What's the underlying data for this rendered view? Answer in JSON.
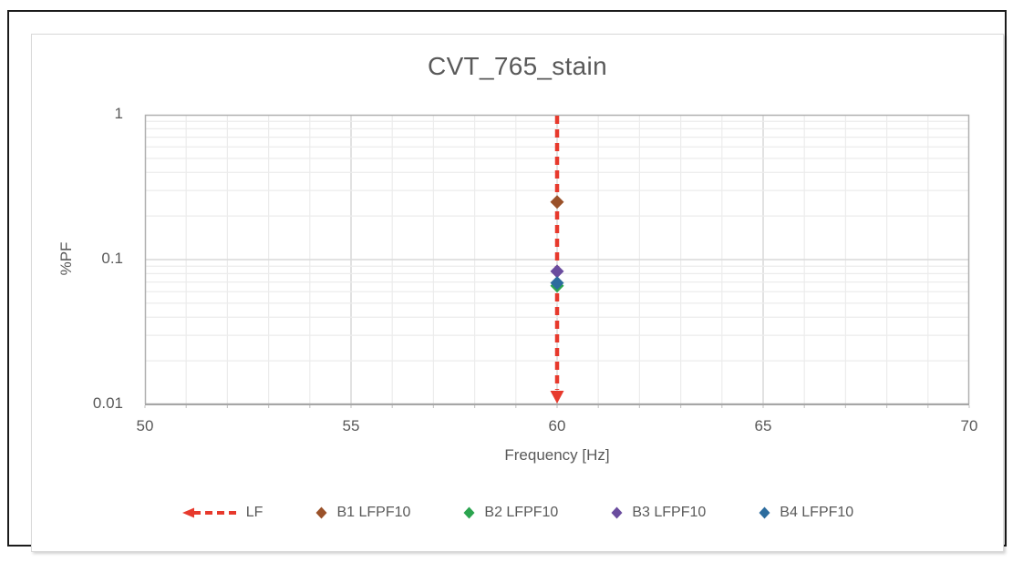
{
  "window": {
    "background_color": "#ffffff",
    "frame_border_color": "#1b1b1b",
    "chart_border_color": "#d9d9d9"
  },
  "chart_data": {
    "type": "scatter",
    "title": "CVT_765_stain",
    "xlabel": "Frequency [Hz]",
    "ylabel": "%PF",
    "xlim": [
      50,
      70
    ],
    "ylim": [
      0.01,
      1
    ],
    "y_scale": "log",
    "x_major_ticks": [
      50,
      55,
      60,
      65,
      70
    ],
    "x_tick_labels": [
      "50",
      "55",
      "60",
      "65",
      "70"
    ],
    "x_minor_step": 1,
    "y_major_ticks": [
      1,
      0.1,
      0.01
    ],
    "y_tick_labels": [
      "1",
      "0.1",
      "0.01"
    ],
    "grid": "major+minor",
    "legend_position": "bottom",
    "text_color": "#595959",
    "grid_minor_color": "#ececec",
    "grid_major_color": "#d9d9d9",
    "axis_line_color": "#b0b0b0",
    "reference_line": {
      "name": "LF",
      "x": 60,
      "color": "#e7392c",
      "style": "dashed",
      "arrow": "down"
    },
    "series": [
      {
        "name": "B1 LFPF10",
        "marker": "diamond",
        "color": "#9a5129",
        "x": [
          60
        ],
        "y": [
          0.25
        ]
      },
      {
        "name": "B2 LFPF10",
        "marker": "diamond",
        "color": "#2ba44f",
        "x": [
          60
        ],
        "y": [
          0.066
        ]
      },
      {
        "name": "B3 LFPF10",
        "marker": "diamond",
        "color": "#6a4c9e",
        "x": [
          60
        ],
        "y": [
          0.083
        ]
      },
      {
        "name": "B4 LFPF10",
        "marker": "diamond",
        "color": "#2c6c9e",
        "x": [
          60
        ],
        "y": [
          0.069
        ]
      }
    ]
  }
}
